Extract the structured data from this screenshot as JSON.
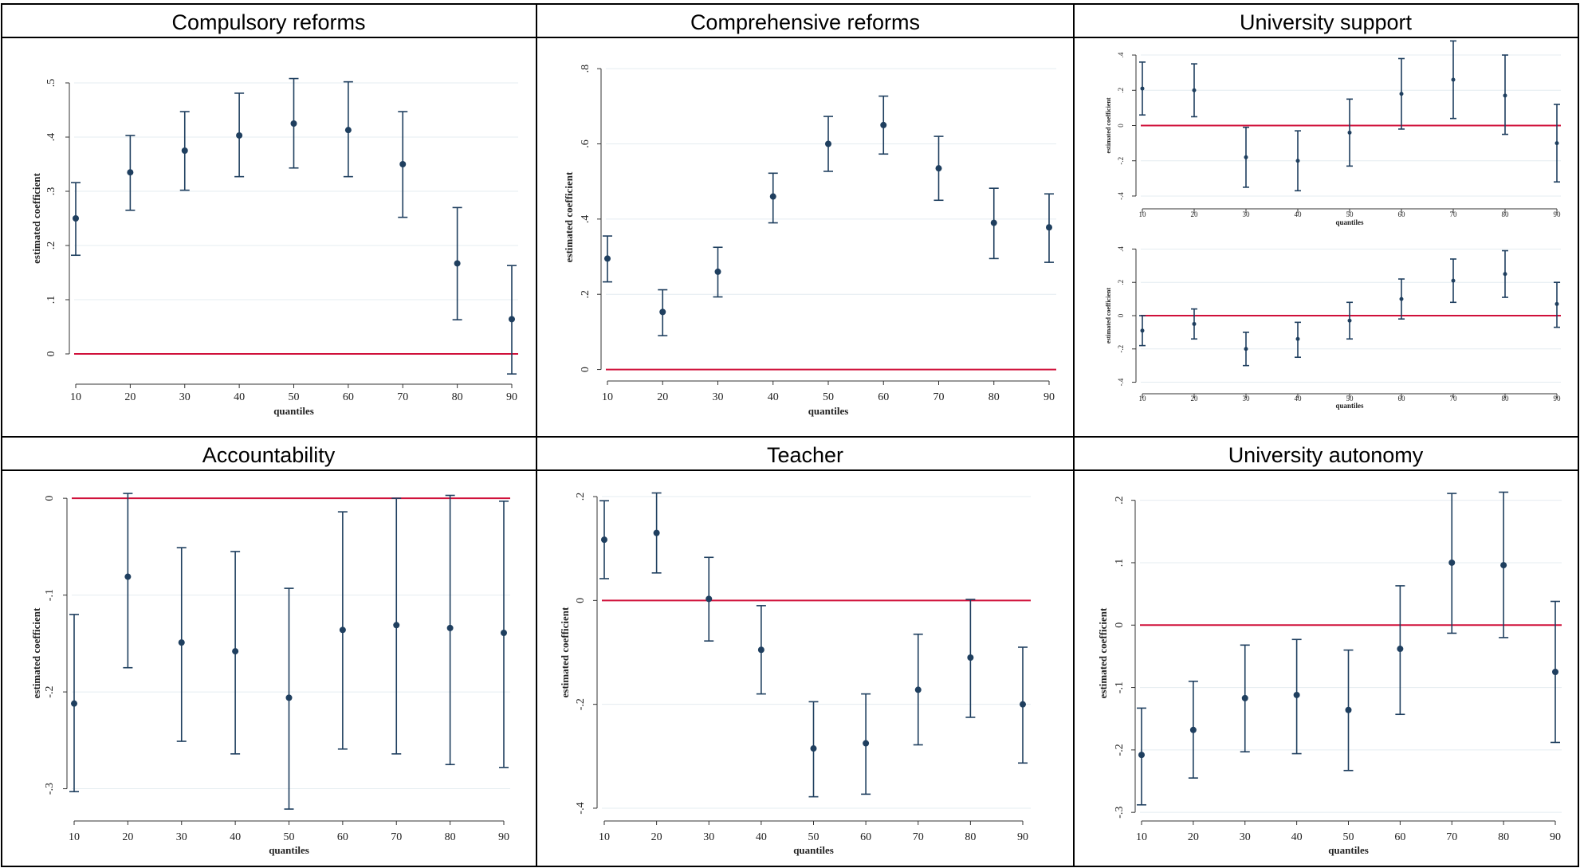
{
  "colors": {
    "marker": "#1f3f5f",
    "zero_line": "#d0103a",
    "gridline": "#e4ecf0",
    "border": "#000000"
  },
  "chart_data": [
    {
      "id": "compulsory",
      "type": "scatter",
      "title": "Compulsory reforms",
      "xlabel": "quantiles",
      "ylabel": "estimated coefficient",
      "x": [
        10,
        20,
        30,
        40,
        50,
        60,
        70,
        80,
        90
      ],
      "x_ticks": [
        "10",
        "20",
        "30",
        "40",
        "50",
        "60",
        "70",
        "80",
        "90"
      ],
      "ylim": [
        -0.05,
        0.55
      ],
      "y_ticks": [
        0,
        0.1,
        0.2,
        0.3,
        0.4,
        0.5
      ],
      "y_tick_labels": [
        "0",
        ".1",
        ".2",
        ".3",
        ".4",
        ".5"
      ],
      "grid": true,
      "reference_line": 0,
      "series": [
        {
          "values": [
            0.25,
            0.335,
            0.375,
            0.403,
            0.425,
            0.413,
            0.35,
            0.167,
            0.064
          ],
          "lower": [
            0.182,
            0.265,
            0.302,
            0.327,
            0.343,
            0.327,
            0.252,
            0.063,
            -0.037
          ],
          "upper": [
            0.316,
            0.403,
            0.447,
            0.481,
            0.508,
            0.502,
            0.447,
            0.27,
            0.163
          ]
        }
      ]
    },
    {
      "id": "comprehensive",
      "type": "scatter",
      "title": "Comprehensive reforms",
      "xlabel": "quantiles",
      "ylabel": "estimated coefficient",
      "x": [
        10,
        20,
        30,
        40,
        50,
        60,
        70,
        80,
        90
      ],
      "x_ticks": [
        "10",
        "20",
        "30",
        "40",
        "50",
        "60",
        "70",
        "80",
        "90"
      ],
      "ylim": [
        -0.02,
        0.83
      ],
      "y_ticks": [
        0,
        0.2,
        0.4,
        0.6,
        0.8
      ],
      "y_tick_labels": [
        "0",
        ".2",
        ".4",
        ".6",
        ".8"
      ],
      "grid": true,
      "reference_line": 0,
      "series": [
        {
          "values": [
            0.295,
            0.153,
            0.26,
            0.46,
            0.6,
            0.65,
            0.535,
            0.39,
            0.378
          ],
          "lower": [
            0.233,
            0.09,
            0.193,
            0.39,
            0.527,
            0.573,
            0.45,
            0.295,
            0.285
          ],
          "upper": [
            0.355,
            0.212,
            0.325,
            0.522,
            0.673,
            0.727,
            0.62,
            0.482,
            0.467
          ]
        }
      ]
    },
    {
      "id": "univ_support_top",
      "type": "scatter",
      "title": "University support",
      "xlabel": "quantiles",
      "ylabel": "estimated coefficient",
      "x": [
        10,
        20,
        30,
        40,
        50,
        60,
        70,
        80,
        90
      ],
      "x_ticks": [
        "10",
        "20",
        "30",
        "40",
        "50",
        "60",
        "70",
        "80",
        "90"
      ],
      "ylim": [
        -0.45,
        0.45
      ],
      "y_ticks": [
        -0.4,
        -0.2,
        0,
        0.2,
        0.4
      ],
      "y_tick_labels": [
        "-.4",
        "-.2",
        "0",
        ".2",
        ".4"
      ],
      "grid": true,
      "reference_line": 0,
      "series": [
        {
          "values": [
            0.21,
            0.2,
            -0.18,
            -0.2,
            -0.04,
            0.18,
            0.26,
            0.17,
            -0.1
          ],
          "lower": [
            0.06,
            0.05,
            -0.35,
            -0.37,
            -0.23,
            -0.02,
            0.04,
            -0.05,
            -0.32
          ],
          "upper": [
            0.36,
            0.35,
            -0.01,
            -0.03,
            0.15,
            0.38,
            0.48,
            0.4,
            0.12
          ]
        }
      ]
    },
    {
      "id": "univ_support_bottom",
      "type": "scatter",
      "title": "",
      "xlabel": "quantiles",
      "ylabel": "estimated coefficient",
      "x": [
        10,
        20,
        30,
        40,
        50,
        60,
        70,
        80,
        90
      ],
      "x_ticks": [
        "10",
        "20",
        "30",
        "40",
        "50",
        "60",
        "70",
        "80",
        "90"
      ],
      "ylim": [
        -0.45,
        0.45
      ],
      "y_ticks": [
        -0.4,
        -0.2,
        0,
        0.2,
        0.4
      ],
      "y_tick_labels": [
        "-.4",
        "-.2",
        "0",
        ".2",
        ".4"
      ],
      "grid": true,
      "reference_line": 0,
      "series": [
        {
          "values": [
            -0.09,
            -0.05,
            -0.2,
            -0.14,
            -0.03,
            0.1,
            0.21,
            0.25,
            0.07
          ],
          "lower": [
            -0.18,
            -0.14,
            -0.3,
            -0.25,
            -0.14,
            -0.02,
            0.08,
            0.11,
            -0.07
          ],
          "upper": [
            0.0,
            0.04,
            -0.1,
            -0.04,
            0.08,
            0.22,
            0.34,
            0.39,
            0.2
          ]
        }
      ]
    },
    {
      "id": "accountability",
      "type": "scatter",
      "title": "Accountability",
      "xlabel": "quantiles",
      "ylabel": "estimated coefficient",
      "x": [
        10,
        20,
        30,
        40,
        50,
        60,
        70,
        80,
        90
      ],
      "x_ticks": [
        "10",
        "20",
        "30",
        "40",
        "50",
        "60",
        "70",
        "80",
        "90"
      ],
      "ylim": [
        -0.33,
        0.01
      ],
      "y_ticks": [
        -0.3,
        -0.2,
        -0.1,
        0
      ],
      "y_tick_labels": [
        "-.3",
        "-.2",
        "-.1",
        "0"
      ],
      "grid": true,
      "reference_line": 0,
      "series": [
        {
          "values": [
            -0.212,
            -0.081,
            -0.149,
            -0.158,
            -0.206,
            -0.136,
            -0.131,
            -0.134,
            -0.139
          ],
          "lower": [
            -0.303,
            -0.175,
            -0.251,
            -0.264,
            -0.321,
            -0.259,
            -0.264,
            -0.275,
            -0.278
          ],
          "upper": [
            -0.12,
            0.005,
            -0.051,
            -0.055,
            -0.093,
            -0.014,
            0.0,
            0.003,
            -0.003
          ]
        }
      ]
    },
    {
      "id": "teacher",
      "type": "scatter",
      "title": "Teacher",
      "xlabel": "quantiles",
      "ylabel": "estimated coefficient",
      "x": [
        10,
        20,
        30,
        40,
        50,
        60,
        70,
        80,
        90
      ],
      "x_ticks": [
        "10",
        "20",
        "30",
        "40",
        "50",
        "60",
        "70",
        "80",
        "90"
      ],
      "ylim": [
        -0.42,
        0.22
      ],
      "y_ticks": [
        -0.4,
        -0.2,
        0,
        0.2
      ],
      "y_tick_labels": [
        "-.4",
        "-.2",
        "0",
        ".2"
      ],
      "grid": true,
      "reference_line": 0,
      "series": [
        {
          "values": [
            0.117,
            0.13,
            0.003,
            -0.095,
            -0.285,
            -0.275,
            -0.172,
            -0.11,
            -0.2
          ],
          "lower": [
            0.042,
            0.053,
            -0.078,
            -0.18,
            -0.378,
            -0.373,
            -0.278,
            -0.225,
            -0.313
          ],
          "upper": [
            0.192,
            0.207,
            0.083,
            -0.01,
            -0.195,
            -0.18,
            -0.065,
            0.002,
            -0.09
          ]
        }
      ]
    },
    {
      "id": "univ_autonomy",
      "type": "scatter",
      "title": "University autonomy",
      "xlabel": "quantiles",
      "ylabel": "estimated coefficient",
      "x": [
        10,
        20,
        30,
        40,
        50,
        60,
        70,
        80,
        90
      ],
      "x_ticks": [
        "10",
        "20",
        "30",
        "40",
        "50",
        "60",
        "70",
        "80",
        "90"
      ],
      "ylim": [
        -0.31,
        0.22
      ],
      "y_ticks": [
        -0.3,
        -0.2,
        -0.1,
        0,
        0.1,
        0.2
      ],
      "y_tick_labels": [
        "-.3",
        "-.2",
        "-.1",
        "0",
        ".1",
        ".2"
      ],
      "grid": true,
      "reference_line": 0,
      "series": [
        {
          "values": [
            -0.208,
            -0.168,
            -0.117,
            -0.112,
            -0.136,
            -0.038,
            0.1,
            0.096,
            -0.075
          ],
          "lower": [
            -0.288,
            -0.245,
            -0.203,
            -0.206,
            -0.233,
            -0.143,
            -0.013,
            -0.02,
            -0.188
          ],
          "upper": [
            -0.133,
            -0.09,
            -0.032,
            -0.023,
            -0.04,
            0.063,
            0.211,
            0.213,
            0.038
          ]
        }
      ]
    }
  ]
}
